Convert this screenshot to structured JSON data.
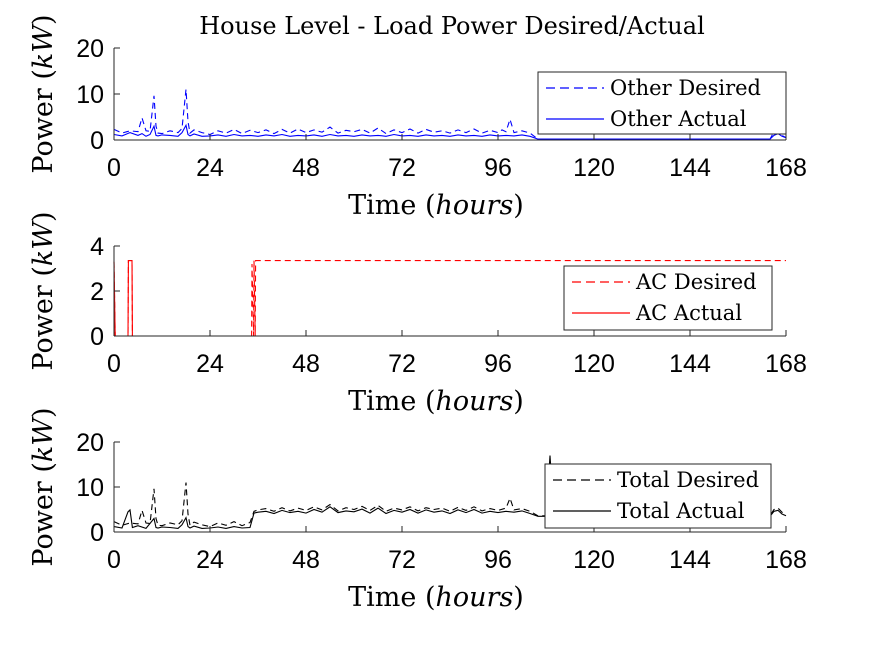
{
  "figure_title": "House Level - Load Power Desired/Actual",
  "chart_data": [
    {
      "type": "line",
      "id": "other",
      "title": "House Level - Load Power Desired/Actual",
      "xlabel": "Time",
      "xlabel_unit": "hours",
      "ylabel": "Power",
      "ylabel_unit": "kW",
      "xlim": [
        0,
        168
      ],
      "ylim": [
        0,
        20
      ],
      "xticks": [
        "0",
        "24",
        "48",
        "72",
        "96",
        "120",
        "144",
        "168"
      ],
      "yticks": [
        "0",
        "10",
        "20"
      ],
      "grid": false,
      "legend_position": "right",
      "series": [
        {
          "name": "Other Desired",
          "style": "dashed",
          "color": "#0000ff",
          "x": [
            0,
            2,
            4,
            6,
            7,
            8,
            9,
            10,
            10.5,
            11,
            12,
            14,
            16,
            17,
            18,
            18.5,
            19,
            20,
            22,
            24,
            26,
            28,
            30,
            32,
            34,
            36,
            38,
            40,
            42,
            44,
            46,
            48,
            50,
            52,
            54,
            56,
            58,
            60,
            62,
            64,
            66,
            68,
            70,
            72,
            74,
            76,
            78,
            80,
            82,
            84,
            86,
            88,
            90,
            92,
            94,
            96,
            97,
            98,
            99,
            100,
            102,
            104,
            106,
            108,
            110,
            112,
            120,
            132,
            144,
            156,
            164,
            165,
            166,
            167,
            168
          ],
          "values": [
            2.3,
            1.5,
            2.0,
            1.8,
            4.8,
            2.0,
            1.9,
            9.6,
            3.0,
            1.5,
            1.4,
            2.0,
            1.6,
            2.5,
            11.0,
            4.0,
            1.5,
            2.2,
            1.6,
            1.2,
            2.0,
            1.5,
            2.3,
            1.4,
            2.1,
            1.6,
            2.2,
            1.4,
            2.3,
            1.5,
            2.4,
            1.6,
            2.2,
            1.7,
            2.8,
            1.5,
            2.1,
            1.8,
            2.3,
            1.5,
            2.6,
            1.4,
            2.2,
            1.6,
            2.4,
            1.5,
            2.3,
            1.7,
            2.0,
            1.5,
            2.2,
            1.6,
            2.4,
            1.5,
            2.1,
            1.6,
            2.2,
            1.8,
            4.5,
            1.6,
            2.0,
            1.5,
            0.2,
            0.2,
            0.2,
            0.2,
            0.2,
            0.2,
            0.2,
            0.2,
            0.2,
            1.8,
            2.0,
            1.0,
            0.5
          ]
        },
        {
          "name": "Other Actual",
          "style": "solid",
          "color": "#0000ff",
          "x": [
            0,
            2,
            4,
            6,
            7,
            8,
            9,
            10,
            10.5,
            11,
            12,
            14,
            16,
            17,
            18,
            18.5,
            19,
            20,
            22,
            24,
            26,
            28,
            30,
            32,
            34,
            36,
            38,
            40,
            42,
            44,
            46,
            48,
            50,
            52,
            54,
            56,
            58,
            60,
            62,
            64,
            66,
            68,
            70,
            72,
            74,
            76,
            78,
            80,
            82,
            84,
            86,
            88,
            90,
            92,
            94,
            96,
            98,
            100,
            102,
            104,
            106,
            108,
            120,
            132,
            144,
            156,
            164,
            165,
            166,
            167,
            168
          ],
          "values": [
            1.2,
            0.9,
            1.6,
            1.0,
            1.4,
            0.8,
            1.2,
            3.0,
            1.0,
            0.9,
            1.1,
            1.0,
            0.8,
            1.6,
            3.2,
            1.2,
            0.9,
            1.3,
            0.8,
            0.9,
            1.1,
            0.8,
            1.2,
            0.9,
            1.0,
            0.8,
            1.1,
            0.9,
            1.2,
            0.8,
            1.0,
            0.9,
            1.1,
            0.8,
            1.2,
            0.9,
            1.0,
            0.8,
            1.1,
            0.9,
            1.0,
            0.8,
            1.2,
            0.9,
            1.0,
            0.8,
            1.1,
            0.9,
            1.0,
            0.8,
            1.1,
            0.9,
            1.0,
            0.8,
            1.1,
            0.9,
            1.0,
            0.9,
            1.1,
            0.8,
            0.2,
            0.2,
            0.2,
            0.2,
            0.2,
            0.2,
            0.2,
            1.0,
            1.4,
            0.8,
            0.5
          ]
        }
      ]
    },
    {
      "type": "line",
      "id": "ac",
      "xlabel": "Time",
      "xlabel_unit": "hours",
      "ylabel": "Power",
      "ylabel_unit": "kW",
      "xlim": [
        0,
        168
      ],
      "ylim": [
        0,
        4
      ],
      "xticks": [
        "0",
        "24",
        "48",
        "72",
        "96",
        "120",
        "144",
        "168"
      ],
      "yticks": [
        "0",
        "2",
        "4"
      ],
      "grid": false,
      "legend_position": "right",
      "series": [
        {
          "name": "AC Desired",
          "style": "dashed",
          "color": "#ff0000",
          "x": [
            0,
            0.3,
            3.5,
            3.6,
            4.5,
            4.6,
            34.4,
            34.5,
            34.9,
            35.0,
            35.3,
            35.4,
            168
          ],
          "values": [
            3.3,
            0,
            0,
            3.35,
            3.35,
            0,
            0,
            3.2,
            0,
            3.35,
            0,
            3.35,
            3.35
          ]
        },
        {
          "name": "AC Actual",
          "style": "solid",
          "color": "#ff0000",
          "x": [
            0,
            0.3,
            3.5,
            3.6,
            4.5,
            4.6,
            168
          ],
          "values": [
            3.3,
            0,
            0,
            3.35,
            3.35,
            0,
            0
          ]
        }
      ]
    },
    {
      "type": "line",
      "id": "total",
      "xlabel": "Time",
      "xlabel_unit": "hours",
      "ylabel": "Power",
      "ylabel_unit": "kW",
      "xlim": [
        0,
        168
      ],
      "ylim": [
        0,
        20
      ],
      "xticks": [
        "0",
        "24",
        "48",
        "72",
        "96",
        "120",
        "144",
        "168"
      ],
      "yticks": [
        "0",
        "10",
        "20"
      ],
      "grid": false,
      "legend_position": "right",
      "series": [
        {
          "name": "Total Desired",
          "style": "dashed",
          "color": "#000000",
          "x": [
            0,
            2,
            4,
            6,
            7,
            8,
            9,
            10,
            10.5,
            11,
            12,
            14,
            16,
            17,
            18,
            18.5,
            19,
            20,
            22,
            24,
            26,
            28,
            30,
            32,
            34,
            35,
            36,
            38,
            40,
            42,
            44,
            46,
            48,
            50,
            52,
            54,
            56,
            58,
            60,
            62,
            64,
            66,
            68,
            70,
            72,
            74,
            76,
            78,
            80,
            82,
            84,
            86,
            88,
            90,
            92,
            94,
            96,
            98,
            99,
            100,
            102,
            104,
            106,
            108,
            110,
            112,
            116,
            120,
            130,
            140,
            150,
            160,
            164,
            165,
            166,
            167,
            168
          ],
          "values": [
            2.3,
            1.5,
            2.0,
            1.8,
            4.8,
            2.0,
            1.9,
            9.6,
            3.0,
            1.5,
            1.4,
            2.0,
            1.6,
            2.5,
            11.0,
            4.0,
            1.5,
            2.2,
            1.6,
            1.2,
            2.0,
            1.5,
            2.3,
            1.4,
            2.1,
            4.6,
            4.9,
            5.2,
            4.6,
            5.4,
            4.7,
            5.3,
            4.8,
            5.6,
            4.9,
            6.1,
            4.7,
            5.4,
            5.0,
            5.7,
            4.8,
            5.9,
            4.6,
            5.3,
            4.9,
            5.6,
            4.7,
            5.4,
            5.0,
            5.3,
            4.6,
            5.5,
            4.8,
            5.6,
            4.7,
            5.2,
            4.8,
            5.3,
            7.5,
            4.9,
            5.2,
            4.6,
            3.6,
            3.6,
            3.6,
            3.6,
            3.6,
            3.6,
            3.6,
            3.6,
            3.6,
            3.6,
            3.6,
            5.0,
            5.3,
            4.4,
            3.9
          ]
        },
        {
          "name": "Total Actual",
          "style": "solid",
          "color": "#000000",
          "x": [
            0,
            2,
            3.5,
            4,
            4.6,
            6,
            8,
            10,
            10.5,
            11,
            12,
            14,
            16,
            17,
            18,
            18.5,
            19,
            20,
            22,
            24,
            26,
            28,
            30,
            32,
            34,
            35,
            36,
            38,
            40,
            42,
            44,
            46,
            48,
            50,
            52,
            54,
            56,
            58,
            60,
            62,
            64,
            66,
            68,
            70,
            72,
            74,
            76,
            78,
            80,
            82,
            84,
            86,
            88,
            90,
            92,
            94,
            96,
            98,
            100,
            102,
            104,
            106,
            108,
            109,
            110,
            111,
            112,
            120,
            130,
            140,
            150,
            160,
            164,
            165,
            166,
            167,
            168
          ],
          "values": [
            1.2,
            0.9,
            4.5,
            4.9,
            1.0,
            1.4,
            0.8,
            3.0,
            1.0,
            0.9,
            1.1,
            1.0,
            0.8,
            1.6,
            3.2,
            1.2,
            0.9,
            1.3,
            0.8,
            0.9,
            1.1,
            0.8,
            1.2,
            0.9,
            1.0,
            4.2,
            4.4,
            4.6,
            4.1,
            4.8,
            4.3,
            4.6,
            4.2,
            5.0,
            4.4,
            5.6,
            4.3,
            4.7,
            4.5,
            5.1,
            4.2,
            5.3,
            4.1,
            4.8,
            4.4,
            5.0,
            4.2,
            4.9,
            4.4,
            4.7,
            4.1,
            4.9,
            4.3,
            5.0,
            4.2,
            4.6,
            4.3,
            4.6,
            4.4,
            4.7,
            4.1,
            3.5,
            3.5,
            17.0,
            3.5,
            3.5,
            3.5,
            3.5,
            3.5,
            3.5,
            3.5,
            3.5,
            3.5,
            4.6,
            4.8,
            4.0,
            3.6
          ]
        }
      ]
    }
  ]
}
